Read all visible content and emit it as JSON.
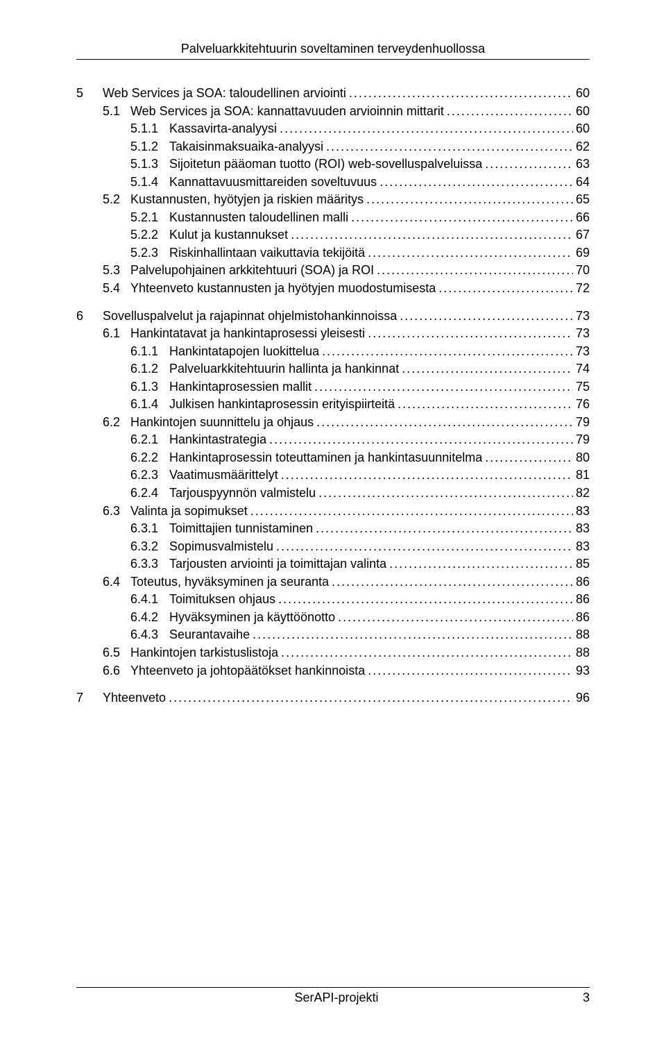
{
  "header": {
    "title": "Palveluarkkitehtuurin soveltaminen terveydenhuollossa"
  },
  "footer": {
    "project": "SerAPI-projekti",
    "page_number": "3"
  },
  "toc": [
    {
      "level": 1,
      "num": "5",
      "title": "Web Services ja SOA: taloudellinen arviointi",
      "page": "60"
    },
    {
      "level": 2,
      "num": "5.1",
      "title": "Web Services ja SOA: kannattavuuden arvioinnin mittarit",
      "page": "60"
    },
    {
      "level": 3,
      "num": "5.1.1",
      "title": "Kassavirta-analyysi",
      "page": "60"
    },
    {
      "level": 3,
      "num": "5.1.2",
      "title": "Takaisinmaksuaika-analyysi",
      "page": "62"
    },
    {
      "level": 3,
      "num": "5.1.3",
      "title": "Sijoitetun pääoman tuotto (ROI) web-sovelluspalveluissa",
      "page": "63"
    },
    {
      "level": 3,
      "num": "5.1.4",
      "title": "Kannattavuusmittareiden soveltuvuus",
      "page": "64"
    },
    {
      "level": 2,
      "num": "5.2",
      "title": "Kustannusten, hyötyjen ja riskien määritys",
      "page": "65"
    },
    {
      "level": 3,
      "num": "5.2.1",
      "title": "Kustannusten taloudellinen malli",
      "page": "66"
    },
    {
      "level": 3,
      "num": "5.2.2",
      "title": "Kulut ja kustannukset",
      "page": "67"
    },
    {
      "level": 3,
      "num": "5.2.3",
      "title": "Riskinhallintaan vaikuttavia tekijöitä",
      "page": "69"
    },
    {
      "level": 2,
      "num": "5.3",
      "title": "Palvelupohjainen arkkitehtuuri (SOA) ja ROI",
      "page": "70"
    },
    {
      "level": 2,
      "num": "5.4",
      "title": "Yhteenveto kustannusten ja hyötyjen muodostumisesta",
      "page": "72"
    },
    {
      "level": 1,
      "num": "6",
      "title": "Sovelluspalvelut ja rajapinnat ohjelmistohankinnoissa",
      "page": "73"
    },
    {
      "level": 2,
      "num": "6.1",
      "title": "Hankintatavat ja hankintaprosessi yleisesti",
      "page": "73"
    },
    {
      "level": 3,
      "num": "6.1.1",
      "title": "Hankintatapojen luokittelua",
      "page": "73"
    },
    {
      "level": 3,
      "num": "6.1.2",
      "title": "Palveluarkkitehtuurin hallinta ja hankinnat",
      "page": "74"
    },
    {
      "level": 3,
      "num": "6.1.3",
      "title": "Hankintaprosessien mallit",
      "page": "75"
    },
    {
      "level": 3,
      "num": "6.1.4",
      "title": "Julkisen hankintaprosessin erityispiirteitä",
      "page": "76"
    },
    {
      "level": 2,
      "num": "6.2",
      "title": "Hankintojen suunnittelu ja ohjaus",
      "page": "79"
    },
    {
      "level": 3,
      "num": "6.2.1",
      "title": "Hankintastrategia",
      "page": "79"
    },
    {
      "level": 3,
      "num": "6.2.2",
      "title": "Hankintaprosessin toteuttaminen ja hankintasuunnitelma",
      "page": "80"
    },
    {
      "level": 3,
      "num": "6.2.3",
      "title": "Vaatimusmäärittelyt",
      "page": "81"
    },
    {
      "level": 3,
      "num": "6.2.4",
      "title": "Tarjouspyynnön valmistelu",
      "page": "82"
    },
    {
      "level": 2,
      "num": "6.3",
      "title": "Valinta ja sopimukset",
      "page": "83"
    },
    {
      "level": 3,
      "num": "6.3.1",
      "title": "Toimittajien tunnistaminen",
      "page": "83"
    },
    {
      "level": 3,
      "num": "6.3.2",
      "title": "Sopimusvalmistelu",
      "page": "83"
    },
    {
      "level": 3,
      "num": "6.3.3",
      "title": "Tarjousten arviointi ja toimittajan valinta",
      "page": "85"
    },
    {
      "level": 2,
      "num": "6.4",
      "title": "Toteutus, hyväksyminen ja seuranta",
      "page": "86"
    },
    {
      "level": 3,
      "num": "6.4.1",
      "title": "Toimituksen ohjaus",
      "page": "86"
    },
    {
      "level": 3,
      "num": "6.4.2",
      "title": "Hyväksyminen ja käyttöönotto",
      "page": "86"
    },
    {
      "level": 3,
      "num": "6.4.3",
      "title": "Seurantavaihe",
      "page": "88"
    },
    {
      "level": 2,
      "num": "6.5",
      "title": "Hankintojen tarkistuslistoja",
      "page": "88"
    },
    {
      "level": 2,
      "num": "6.6",
      "title": "Yhteenveto ja johtopäätökset hankinnoista",
      "page": "93"
    },
    {
      "level": 1,
      "num": "7",
      "title": "Yhteenveto",
      "page": "96"
    }
  ]
}
